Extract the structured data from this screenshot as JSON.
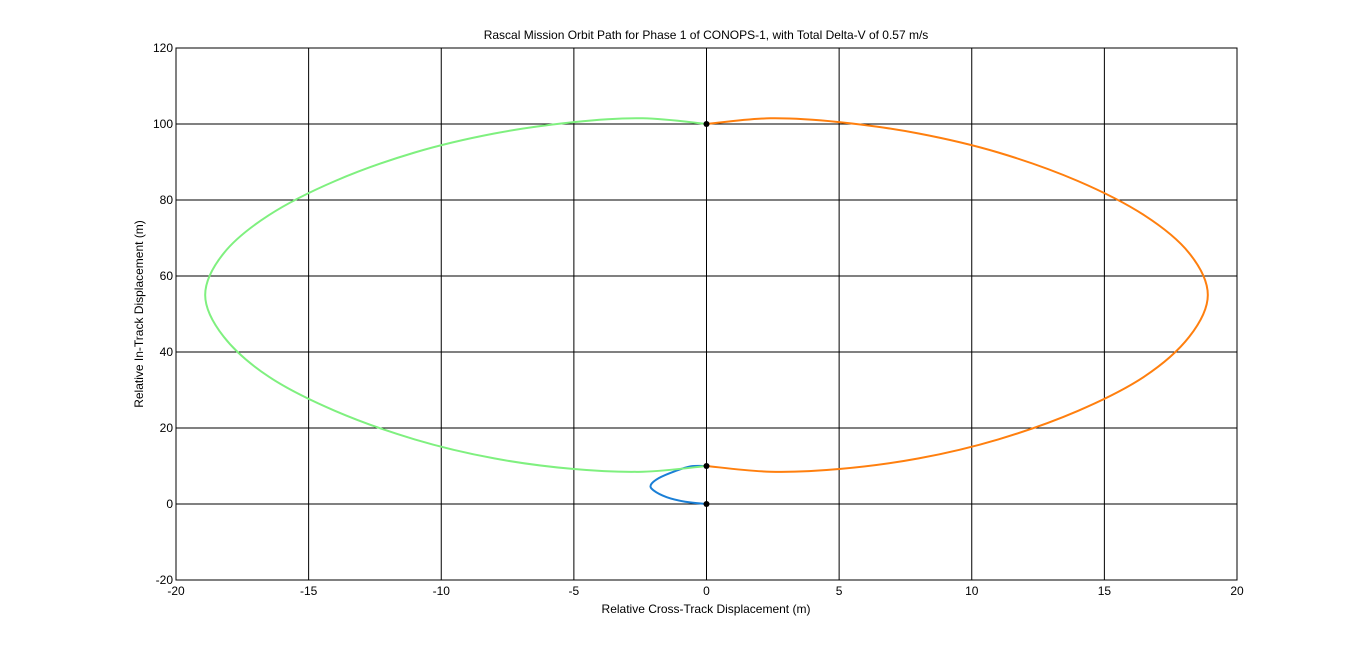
{
  "chart_data": {
    "type": "line",
    "title": "Rascal Mission Orbit Path for Phase 1 of CONOPS-1, with Total Delta-V of 0.57 m/s",
    "xlabel": "Relative Cross-Track Displacement (m)",
    "ylabel": "Relative In-Track Displacement (m)",
    "xlim": [
      -20,
      20
    ],
    "ylim": [
      -20,
      120
    ],
    "xticks": [
      -20,
      -15,
      -10,
      -5,
      0,
      5,
      10,
      15,
      20
    ],
    "yticks": [
      -20,
      0,
      20,
      40,
      60,
      80,
      100,
      120
    ],
    "grid": true,
    "series": [
      {
        "color": "#1a7fd6",
        "x": [
          0,
          -0.8,
          -1.5,
          -2.0,
          -2.1,
          -1.8,
          -1.2,
          -0.6,
          0
        ],
        "y": [
          0,
          0.6,
          1.8,
          3.6,
          5.0,
          6.8,
          8.6,
          9.9,
          10
        ]
      },
      {
        "color": "#ff7f0e",
        "x": [
          0,
          2.4,
          5.0,
          8.0,
          11.0,
          14.0,
          16.5,
          18.2,
          18.9,
          18.2,
          16.5,
          14.0,
          11.0,
          8.0,
          5.0,
          2.4,
          0
        ],
        "y": [
          100,
          101.5,
          100.5,
          97.5,
          92.5,
          85.0,
          76.0,
          66.0,
          55.0,
          44.0,
          33.5,
          24.5,
          17.0,
          12.0,
          9.2,
          8.5,
          10
        ]
      },
      {
        "color": "#7ff07f",
        "x": [
          0,
          -2.4,
          -5.0,
          -8.0,
          -11.0,
          -14.0,
          -16.5,
          -18.2,
          -18.9,
          -18.2,
          -16.5,
          -14.0,
          -11.0,
          -8.0,
          -5.0,
          -2.4,
          0
        ],
        "y": [
          100,
          101.5,
          100.5,
          97.5,
          92.5,
          85.0,
          76.0,
          66.0,
          55.0,
          44.0,
          33.5,
          24.5,
          17.0,
          12.0,
          9.2,
          8.5,
          10
        ]
      }
    ],
    "markers": [
      {
        "x": 0,
        "y": 0
      },
      {
        "x": 0,
        "y": 10
      },
      {
        "x": 0,
        "y": 100
      }
    ]
  },
  "colors": {
    "axes": "#000000",
    "grid": "#000000",
    "marker": "#000000",
    "background": "#ffffff"
  }
}
